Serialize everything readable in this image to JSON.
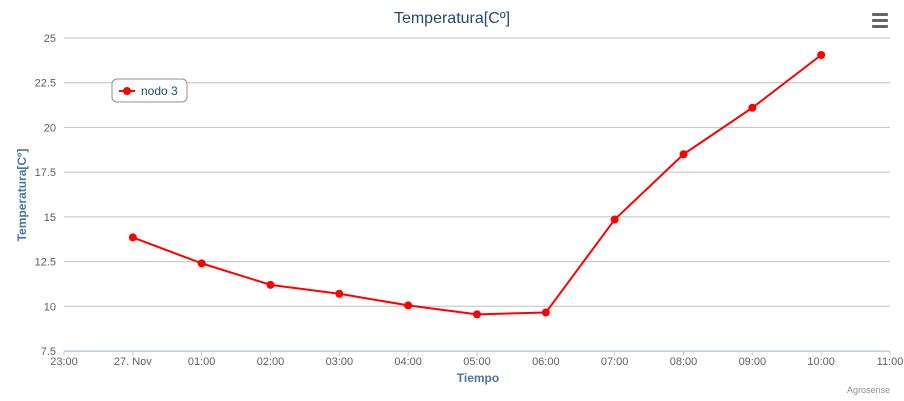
{
  "chart_data": {
    "type": "line",
    "title": "Temperatura[Cº]",
    "xlabel": "Tiempo",
    "ylabel": "Temperatura[Cº]",
    "x_tick_labels": [
      "23:00",
      "27. Nov",
      "01:00",
      "02:00",
      "03:00",
      "04:00",
      "05:00",
      "06:00",
      "07:00",
      "08:00",
      "09:00",
      "10:00",
      "11:00"
    ],
    "y_tick_labels": [
      "7.5",
      "10",
      "12.5",
      "15",
      "17.5",
      "20",
      "22.5",
      "25"
    ],
    "ylim": [
      7.5,
      25
    ],
    "xlim_hours": [
      -1,
      11
    ],
    "grid": true,
    "legend_position": "top-left",
    "series": [
      {
        "name": "nodo 3",
        "color": "#ff0000",
        "x": [
          "00:00",
          "01:00",
          "02:00",
          "03:00",
          "04:00",
          "05:00",
          "06:00",
          "07:00",
          "08:00",
          "09:00",
          "10:00"
        ],
        "values": [
          13.85,
          12.4,
          11.2,
          10.7,
          10.05,
          9.55,
          9.65,
          14.85,
          18.5,
          21.1,
          24.05
        ]
      }
    ]
  },
  "credits": "Agrosense",
  "menu_icon": "hamburger-menu-icon"
}
